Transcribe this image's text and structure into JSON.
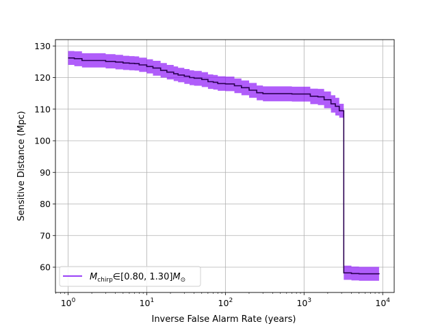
{
  "chart_data": {
    "type": "line",
    "xlabel": "Inverse False Alarm Rate (years)",
    "ylabel": "Sensitive Distance (Mpc)",
    "xscale": "log",
    "xlim": [
      0.69,
      14000
    ],
    "ylim": [
      52,
      132
    ],
    "grid": true,
    "legend_position": "lower left",
    "x_tick_labels": [
      {
        "base": "10",
        "exp": "0",
        "value": 1
      },
      {
        "base": "10",
        "exp": "1",
        "value": 10
      },
      {
        "base": "10",
        "exp": "2",
        "value": 100
      },
      {
        "base": "10",
        "exp": "3",
        "value": 1000
      },
      {
        "base": "10",
        "exp": "4",
        "value": 10000
      }
    ],
    "y_ticks": [
      60,
      70,
      80,
      90,
      100,
      110,
      120,
      130
    ],
    "legend": {
      "symbol": "M",
      "subscript": "chirp",
      "range": "∈[0.80, 1.30]",
      "unit_symbol": "M",
      "unit_subscript": "⊙"
    },
    "series": [
      {
        "color": "#7600f5",
        "line_color": "#2a0052",
        "band_color": "#8a10f8",
        "x": [
          1,
          1.2,
          1.5,
          2,
          3,
          4,
          5,
          6,
          7,
          8,
          10,
          12,
          15,
          18,
          22,
          25,
          30,
          35,
          40,
          50,
          60,
          70,
          80,
          100,
          130,
          160,
          200,
          250,
          300,
          400,
          500,
          700,
          1000,
          1200,
          1500,
          1800,
          2200,
          2500,
          2800,
          3000,
          3200,
          3600,
          4000,
          5000,
          6000,
          9000
        ],
        "y": [
          126.2,
          126.0,
          125.4,
          125.4,
          125.1,
          124.9,
          124.6,
          124.5,
          124.4,
          124.0,
          123.5,
          123.0,
          122.3,
          121.7,
          121.2,
          120.8,
          120.4,
          120.0,
          119.8,
          119.4,
          118.7,
          118.5,
          118.1,
          118.0,
          117.4,
          116.8,
          116.0,
          115.2,
          114.9,
          114.9,
          114.9,
          114.8,
          114.8,
          114.1,
          113.9,
          113.0,
          111.7,
          110.9,
          109.5,
          109.5,
          58.2,
          58.2,
          58.0,
          57.9,
          57.9,
          57.8
        ],
        "y_lower": [
          124.0,
          123.6,
          123.2,
          123.2,
          122.9,
          122.6,
          122.4,
          122.3,
          122.2,
          121.8,
          121.3,
          120.6,
          120.0,
          119.4,
          118.9,
          118.5,
          118.0,
          117.6,
          117.4,
          117.0,
          116.4,
          116.2,
          115.8,
          115.7,
          115.1,
          114.4,
          113.6,
          112.8,
          112.5,
          112.5,
          112.5,
          112.4,
          112.4,
          111.6,
          111.3,
          110.3,
          108.9,
          108.0,
          107.3,
          107.3,
          56.0,
          56.0,
          55.8,
          55.7,
          55.7,
          55.6
        ],
        "y_upper": [
          128.4,
          128.3,
          127.7,
          127.7,
          127.4,
          127.2,
          126.9,
          126.8,
          126.7,
          126.3,
          125.8,
          125.3,
          124.6,
          124.0,
          123.5,
          123.1,
          122.7,
          122.3,
          122.1,
          121.7,
          121.0,
          120.8,
          120.4,
          120.3,
          119.7,
          119.1,
          118.3,
          117.5,
          117.2,
          117.2,
          117.2,
          117.1,
          117.1,
          116.5,
          116.4,
          115.6,
          114.4,
          113.6,
          111.7,
          111.7,
          60.5,
          60.5,
          60.2,
          60.1,
          60.1,
          60.0
        ]
      }
    ]
  }
}
